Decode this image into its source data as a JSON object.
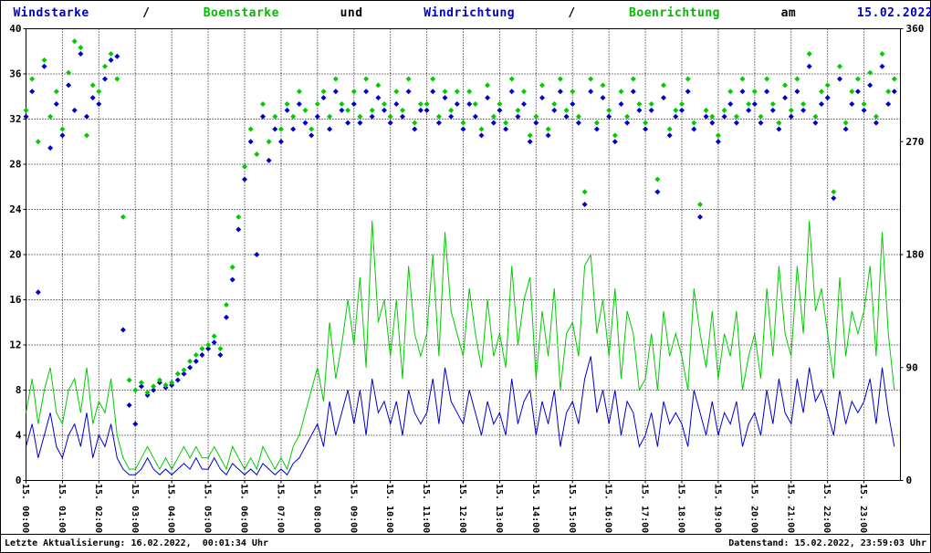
{
  "page": {
    "background": "#ffffff",
    "border_color": "#000000"
  },
  "title": {
    "segments": [
      {
        "text": "Windstarke",
        "color": "#0000cd"
      },
      {
        "text": "/",
        "color": "#000000"
      },
      {
        "text": "Boenstarke",
        "color": "#00bb00"
      },
      {
        "text": " und ",
        "color": "#000000"
      },
      {
        "text": "Windrichtung",
        "color": "#0000cd"
      },
      {
        "text": "/",
        "color": "#000000"
      },
      {
        "text": "Boenrichtung",
        "color": "#00bb00"
      },
      {
        "text": " am ",
        "color": "#000000"
      },
      {
        "text": "15.02.2022",
        "color": "#0000cd"
      }
    ]
  },
  "footer": {
    "left": "Letzte Aktualisierung: 16.02.2022,  00:01:34 Uhr",
    "right": "Datenstand: 15.02.2022, 23:59:03 Uhr"
  },
  "chart_data": {
    "type": "line",
    "subtype": "wind speed lines (left axis) + wind direction scatter (right axis)",
    "grid": {
      "style": "dotted",
      "color": "#000000"
    },
    "sample_interval_minutes": 10,
    "x_tick_labels": [
      "15. 00:00",
      "15. 01:00",
      "15. 02:00",
      "15. 03:00",
      "15. 04:00",
      "15. 05:00",
      "15. 06:00",
      "15. 07:00",
      "15. 08:00",
      "15. 09:00",
      "15. 10:00",
      "15. 11:00",
      "15. 12:00",
      "15. 13:00",
      "15. 14:00",
      "15. 15:00",
      "15. 16:00",
      "15. 17:00",
      "15. 18:00",
      "15. 19:00",
      "15. 20:00",
      "15. 21:00",
      "15. 22:00",
      "15. 23:00"
    ],
    "left_axis": {
      "min": 0,
      "max": 40,
      "ticks": [
        0,
        4,
        8,
        12,
        16,
        20,
        24,
        28,
        32,
        36,
        40
      ]
    },
    "right_axis": {
      "min": 0,
      "max": 360,
      "ticks": [
        0,
        90,
        180,
        270,
        360
      ]
    },
    "series": [
      {
        "name": "Windstarke",
        "type": "line",
        "axis": "left",
        "color": "#0000cd",
        "values": [
          3,
          5,
          2,
          4,
          6,
          3,
          2,
          4,
          5,
          3,
          6,
          2,
          4,
          3,
          5,
          2,
          1,
          0.5,
          0.5,
          1,
          2,
          1,
          0.5,
          1,
          0.5,
          1,
          1.5,
          1,
          2,
          1,
          1,
          2,
          1,
          0.5,
          1.5,
          1,
          0.5,
          1,
          0.5,
          1.5,
          1,
          0.5,
          1,
          0.5,
          1.5,
          2,
          3,
          4,
          5,
          3,
          7,
          4,
          6,
          8,
          5,
          8,
          4,
          9,
          6,
          7,
          5,
          7,
          4,
          8,
          6,
          5,
          6,
          9,
          5,
          10,
          7,
          6,
          5,
          8,
          6,
          4,
          7,
          5,
          6,
          4,
          9,
          5,
          7,
          8,
          4,
          7,
          5,
          8,
          3,
          6,
          7,
          5,
          9,
          11,
          6,
          8,
          5,
          8,
          4,
          7,
          6,
          3,
          4,
          6,
          3,
          7,
          5,
          6,
          5,
          3,
          8,
          6,
          4,
          7,
          4,
          6,
          5,
          7,
          3,
          5,
          6,
          4,
          8,
          5,
          9,
          6,
          5,
          9,
          6,
          10,
          7,
          8,
          6,
          4,
          8,
          5,
          7,
          6,
          7,
          9,
          5,
          10,
          6,
          3
        ]
      },
      {
        "name": "Boenstarke",
        "type": "line",
        "axis": "left",
        "color": "#00cc00",
        "values": [
          6,
          9,
          5,
          8,
          10,
          6,
          5,
          8,
          9,
          6,
          10,
          5,
          7,
          6,
          9,
          4,
          2,
          1,
          1,
          2,
          3,
          2,
          1,
          2,
          1,
          2,
          3,
          2,
          3,
          2,
          2,
          3,
          2,
          1,
          3,
          2,
          1,
          2,
          1,
          3,
          2,
          1,
          2,
          1,
          3,
          4,
          6,
          8,
          10,
          7,
          14,
          9,
          12,
          16,
          12,
          18,
          10,
          23,
          14,
          16,
          11,
          16,
          9,
          19,
          13,
          11,
          13,
          20,
          11,
          22,
          15,
          13,
          11,
          17,
          13,
          10,
          16,
          11,
          13,
          10,
          19,
          12,
          16,
          18,
          9,
          15,
          11,
          17,
          8,
          13,
          14,
          11,
          19,
          20,
          13,
          16,
          11,
          17,
          9,
          15,
          13,
          8,
          9,
          13,
          8,
          15,
          11,
          13,
          11,
          8,
          17,
          13,
          10,
          15,
          9,
          13,
          11,
          15,
          8,
          11,
          13,
          9,
          17,
          11,
          19,
          13,
          11,
          19,
          13,
          23,
          15,
          17,
          13,
          9,
          18,
          11,
          15,
          13,
          15,
          19,
          11,
          22,
          13,
          8
        ]
      },
      {
        "name": "Windrichtung",
        "type": "scatter",
        "axis": "right",
        "color": "#0000cd",
        "values": [
          290,
          310,
          150,
          330,
          265,
          300,
          275,
          315,
          295,
          340,
          290,
          305,
          300,
          320,
          335,
          338,
          120,
          60,
          45,
          75,
          68,
          72,
          78,
          74,
          76,
          80,
          85,
          90,
          95,
          100,
          105,
          110,
          100,
          130,
          160,
          200,
          240,
          270,
          180,
          290,
          255,
          280,
          270,
          295,
          280,
          300,
          285,
          275,
          290,
          305,
          280,
          310,
          295,
          285,
          300,
          285,
          310,
          290,
          305,
          295,
          285,
          300,
          290,
          310,
          280,
          295,
          295,
          310,
          285,
          305,
          290,
          300,
          280,
          300,
          290,
          275,
          305,
          285,
          295,
          280,
          310,
          290,
          300,
          270,
          285,
          305,
          275,
          295,
          310,
          290,
          300,
          285,
          220,
          310,
          280,
          305,
          290,
          270,
          300,
          285,
          310,
          295,
          280,
          295,
          230,
          305,
          275,
          290,
          295,
          310,
          280,
          210,
          290,
          285,
          270,
          290,
          300,
          285,
          310,
          295,
          300,
          285,
          310,
          295,
          280,
          305,
          290,
          310,
          295,
          330,
          285,
          300,
          305,
          225,
          320,
          280,
          300,
          310,
          295,
          315,
          285,
          330,
          300,
          310
        ]
      },
      {
        "name": "Boenrichtung",
        "type": "scatter",
        "axis": "right",
        "color": "#00cc00",
        "values": [
          295,
          320,
          270,
          335,
          290,
          310,
          280,
          325,
          350,
          345,
          275,
          315,
          310,
          330,
          340,
          320,
          210,
          80,
          72,
          78,
          70,
          75,
          80,
          76,
          78,
          85,
          88,
          95,
          100,
          105,
          108,
          115,
          105,
          140,
          170,
          210,
          250,
          280,
          260,
          300,
          270,
          290,
          280,
          300,
          290,
          310,
          295,
          280,
          300,
          310,
          290,
          320,
          300,
          295,
          310,
          290,
          320,
          295,
          315,
          300,
          290,
          310,
          295,
          320,
          285,
          300,
          300,
          320,
          290,
          310,
          295,
          310,
          285,
          310,
          300,
          280,
          315,
          290,
          300,
          285,
          320,
          295,
          310,
          275,
          290,
          315,
          280,
          300,
          320,
          295,
          310,
          290,
          230,
          320,
          285,
          315,
          295,
          275,
          310,
          290,
          320,
          300,
          285,
          300,
          240,
          315,
          280,
          295,
          300,
          320,
          285,
          220,
          295,
          290,
          275,
          295,
          310,
          290,
          320,
          300,
          310,
          290,
          320,
          300,
          285,
          315,
          295,
          320,
          300,
          340,
          290,
          310,
          315,
          230,
          330,
          285,
          310,
          320,
          300,
          325,
          290,
          340,
          310,
          320
        ]
      }
    ]
  }
}
